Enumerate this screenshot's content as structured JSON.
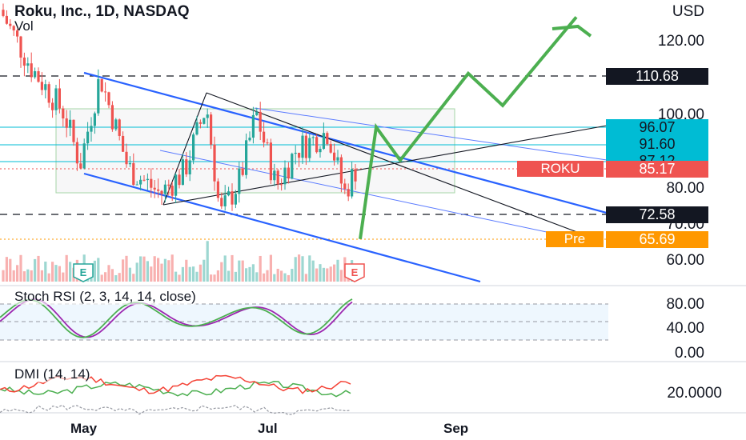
{
  "header": {
    "title": "Roku, Inc., 1D, NASDAQ",
    "subtitle": "Vol"
  },
  "axis": {
    "currency": "USD",
    "price_ticks": [
      "120.00",
      "100.00",
      "80.00",
      "70.00",
      "60.00"
    ],
    "rsi_ticks": [
      "80.00",
      "40.00",
      "0.00"
    ],
    "dmi_tick": "20.0000",
    "x_ticks": [
      "May",
      "Jul",
      "Sep"
    ]
  },
  "badges": [
    {
      "value": "110.68",
      "bg": "#131722",
      "fg": "#ffffff"
    },
    {
      "value": "96.07",
      "bg": "#00bcd4",
      "fg": "#131722"
    },
    {
      "value": "91.60",
      "bg": "#00bcd4",
      "fg": "#131722"
    },
    {
      "value": "87.12",
      "bg": "#00bcd4",
      "fg": "#131722"
    },
    {
      "value": "85.17",
      "bg": "#ef5350",
      "fg": "#ffffff"
    },
    {
      "value": "72.58",
      "bg": "#131722",
      "fg": "#ffffff"
    },
    {
      "value": "65.69",
      "bg": "#ff9800",
      "fg": "#ffffff"
    }
  ],
  "tags": {
    "ticker": "ROKU",
    "pre": "Pre",
    "earnings": "E"
  },
  "indicators": {
    "stoch_label": "Stoch RSI (2, 3, 14, 14, close)",
    "dmi_label": "DMI (14, 14)"
  },
  "colors": {
    "up": "#26a69a",
    "down": "#ef5350",
    "channel": "#2962ff",
    "projection": "#4caf50",
    "level": "#00bcd4",
    "premarket": "#ff9800",
    "rsi_k": "#4caf50",
    "rsi_d": "#9c27b0",
    "dmi_plus": "#4caf50",
    "dmi_minus": "#f44336"
  },
  "chart_data": {
    "type": "candlestick",
    "symbol": "ROKU",
    "exchange": "NASDAQ",
    "interval": "1D",
    "last_price": 85.17,
    "premarket_price": 65.69,
    "levels": [
      110.68,
      96.07,
      91.6,
      87.12,
      72.58
    ],
    "projection_path": [
      65.7,
      96.1,
      87.1,
      110.7,
      102.0,
      126.0
    ],
    "price_axis_range": [
      55,
      135
    ],
    "stoch_rsi_range": [
      0,
      100
    ],
    "stoch_rsi_bands": [
      80,
      40,
      20
    ]
  }
}
